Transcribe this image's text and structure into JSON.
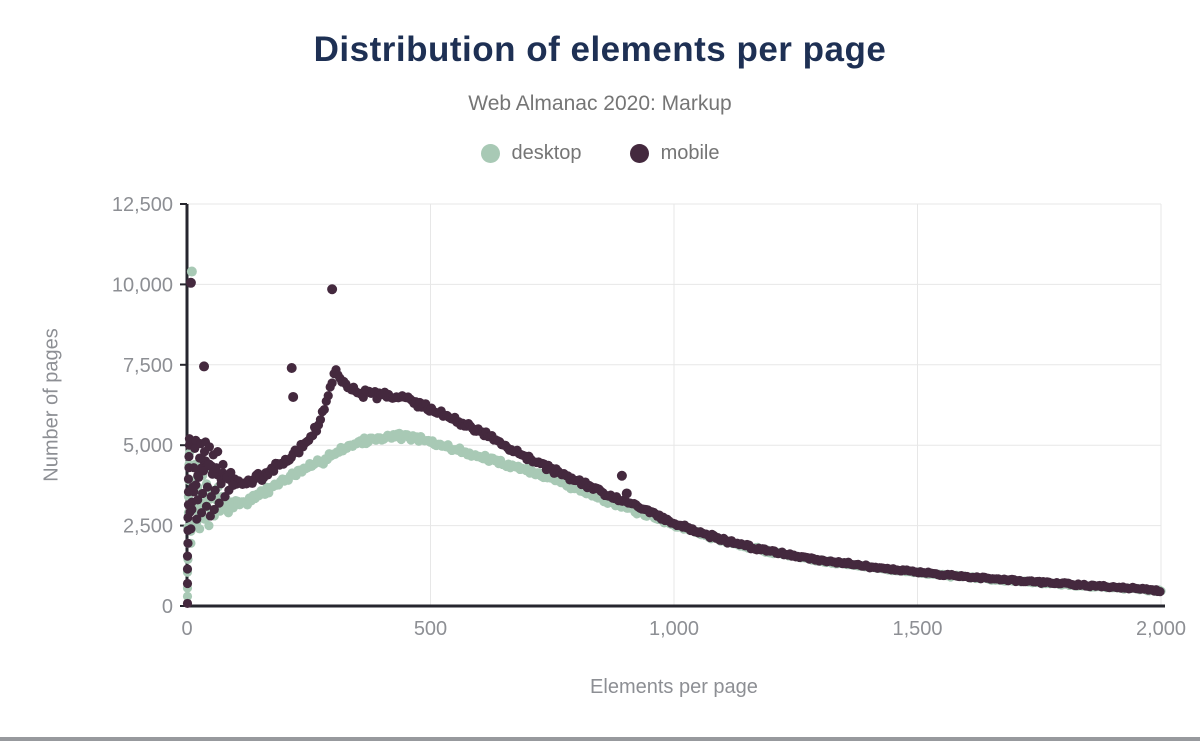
{
  "header": {
    "title": "Distribution of elements per page",
    "subtitle": "Web Almanac 2020: Markup"
  },
  "colors": {
    "title": "#1e3054",
    "subtitle_text": "#757575",
    "tick_text": "#8d8f94",
    "axis_line": "#26262e",
    "gridline": "#e7e7e7",
    "footer_bar": "#97999d",
    "desktop": "#a8c9b5",
    "mobile": "#44293e"
  },
  "chart_data": {
    "type": "scatter",
    "title": "Distribution of elements per page",
    "subtitle": "Web Almanac 2020: Markup",
    "xlabel": "Elements per page",
    "ylabel": "Number of pages",
    "xlim": [
      0,
      2000
    ],
    "ylim": [
      0,
      12500
    ],
    "grid": true,
    "legend_position": "top-center",
    "x_ticks": [
      {
        "v": 0,
        "label": "0"
      },
      {
        "v": 500,
        "label": "500"
      },
      {
        "v": 1000,
        "label": "1,000"
      },
      {
        "v": 1500,
        "label": "1,500"
      },
      {
        "v": 2000,
        "label": "2,000"
      }
    ],
    "y_ticks": [
      {
        "v": 0,
        "label": "0"
      },
      {
        "v": 2500,
        "label": "2,500"
      },
      {
        "v": 5000,
        "label": "5,000"
      },
      {
        "v": 7500,
        "label": "7,500"
      },
      {
        "v": 10000,
        "label": "10,000"
      },
      {
        "v": 12500,
        "label": "12,500"
      }
    ],
    "series": [
      {
        "name": "desktop",
        "color": "#a8c9b5",
        "trend": [
          [
            10,
            2300
          ],
          [
            25,
            2900
          ],
          [
            40,
            3300
          ],
          [
            55,
            3400
          ],
          [
            70,
            3300
          ],
          [
            90,
            3200
          ],
          [
            110,
            3200
          ],
          [
            130,
            3300
          ],
          [
            150,
            3450
          ],
          [
            170,
            3650
          ],
          [
            190,
            3850
          ],
          [
            210,
            4000
          ],
          [
            230,
            4150
          ],
          [
            250,
            4300
          ],
          [
            270,
            4450
          ],
          [
            290,
            4650
          ],
          [
            310,
            4820
          ],
          [
            330,
            4950
          ],
          [
            350,
            5080
          ],
          [
            375,
            5160
          ],
          [
            400,
            5230
          ],
          [
            425,
            5300
          ],
          [
            450,
            5280
          ],
          [
            475,
            5200
          ],
          [
            500,
            5080
          ],
          [
            525,
            4980
          ],
          [
            550,
            4880
          ],
          [
            575,
            4760
          ],
          [
            600,
            4650
          ],
          [
            625,
            4540
          ],
          [
            650,
            4430
          ],
          [
            675,
            4330
          ],
          [
            700,
            4230
          ],
          [
            725,
            4090
          ],
          [
            750,
            3950
          ],
          [
            775,
            3800
          ],
          [
            800,
            3650
          ],
          [
            825,
            3500
          ],
          [
            850,
            3350
          ],
          [
            875,
            3200
          ],
          [
            900,
            3060
          ],
          [
            925,
            2930
          ],
          [
            950,
            2800
          ],
          [
            975,
            2660
          ],
          [
            1000,
            2530
          ],
          [
            1050,
            2270
          ],
          [
            1100,
            2030
          ],
          [
            1150,
            1840
          ],
          [
            1200,
            1680
          ],
          [
            1250,
            1540
          ],
          [
            1300,
            1420
          ],
          [
            1350,
            1310
          ],
          [
            1400,
            1210
          ],
          [
            1450,
            1120
          ],
          [
            1500,
            1040
          ],
          [
            1550,
            965
          ],
          [
            1600,
            895
          ],
          [
            1650,
            835
          ],
          [
            1700,
            775
          ],
          [
            1750,
            725
          ],
          [
            1800,
            675
          ],
          [
            1850,
            625
          ],
          [
            1900,
            575
          ],
          [
            1950,
            530
          ],
          [
            2000,
            465
          ]
        ],
        "scatter": [
          [
            1,
            300
          ],
          [
            1,
            560
          ],
          [
            1,
            1050
          ],
          [
            2,
            1450
          ],
          [
            2,
            1950
          ],
          [
            2,
            2450
          ],
          [
            3,
            2900
          ],
          [
            3,
            3400
          ],
          [
            4,
            3900
          ],
          [
            4,
            4400
          ],
          [
            5,
            4750
          ],
          [
            8,
            1950
          ],
          [
            10,
            2500
          ],
          [
            12,
            3200
          ],
          [
            14,
            3900
          ],
          [
            16,
            4400
          ],
          [
            18,
            2600
          ],
          [
            20,
            3100
          ],
          [
            22,
            3700
          ],
          [
            24,
            4200
          ],
          [
            26,
            2400
          ],
          [
            28,
            2950
          ],
          [
            30,
            3500
          ],
          [
            32,
            4050
          ],
          [
            34,
            4450
          ],
          [
            36,
            2700
          ],
          [
            38,
            3250
          ],
          [
            40,
            3800
          ],
          [
            42,
            4300
          ],
          [
            45,
            2500
          ],
          [
            48,
            3000
          ],
          [
            50,
            3600
          ],
          [
            53,
            4100
          ],
          [
            56,
            2800
          ],
          [
            60,
            3300
          ],
          [
            64,
            3700
          ],
          [
            68,
            2950
          ],
          [
            72,
            3400
          ],
          [
            78,
            3100
          ],
          [
            85,
            2900
          ],
          [
            95,
            3050
          ]
        ],
        "outliers": [
          [
            10,
            10400
          ]
        ]
      },
      {
        "name": "mobile",
        "color": "#44293e",
        "trend": [
          [
            6,
            2900
          ],
          [
            15,
            3600
          ],
          [
            25,
            4200
          ],
          [
            35,
            4500
          ],
          [
            45,
            4400
          ],
          [
            55,
            4300
          ],
          [
            65,
            4100
          ],
          [
            80,
            3950
          ],
          [
            95,
            3850
          ],
          [
            110,
            3800
          ],
          [
            125,
            3850
          ],
          [
            140,
            3950
          ],
          [
            155,
            4050
          ],
          [
            170,
            4200
          ],
          [
            185,
            4350
          ],
          [
            200,
            4500
          ],
          [
            215,
            4650
          ],
          [
            230,
            4850
          ],
          [
            245,
            5100
          ],
          [
            258,
            5350
          ],
          [
            270,
            5650
          ],
          [
            280,
            6000
          ],
          [
            290,
            6550
          ],
          [
            298,
            7000
          ],
          [
            305,
            7250
          ],
          [
            312,
            7150
          ],
          [
            320,
            6950
          ],
          [
            330,
            6800
          ],
          [
            345,
            6650
          ],
          [
            360,
            6550
          ],
          [
            375,
            6650
          ],
          [
            390,
            6550
          ],
          [
            405,
            6600
          ],
          [
            420,
            6520
          ],
          [
            435,
            6500
          ],
          [
            450,
            6450
          ],
          [
            465,
            6380
          ],
          [
            480,
            6250
          ],
          [
            500,
            6100
          ],
          [
            525,
            5950
          ],
          [
            550,
            5780
          ],
          [
            575,
            5600
          ],
          [
            600,
            5420
          ],
          [
            625,
            5220
          ],
          [
            650,
            5010
          ],
          [
            675,
            4800
          ],
          [
            700,
            4600
          ],
          [
            725,
            4420
          ],
          [
            750,
            4240
          ],
          [
            775,
            4070
          ],
          [
            800,
            3900
          ],
          [
            825,
            3730
          ],
          [
            850,
            3560
          ],
          [
            875,
            3400
          ],
          [
            900,
            3250
          ],
          [
            925,
            3100
          ],
          [
            950,
            2950
          ],
          [
            975,
            2750
          ],
          [
            1000,
            2570
          ],
          [
            1050,
            2300
          ],
          [
            1100,
            2060
          ],
          [
            1150,
            1860
          ],
          [
            1200,
            1700
          ],
          [
            1250,
            1560
          ],
          [
            1300,
            1440
          ],
          [
            1350,
            1330
          ],
          [
            1400,
            1230
          ],
          [
            1450,
            1140
          ],
          [
            1500,
            1060
          ],
          [
            1550,
            985
          ],
          [
            1600,
            915
          ],
          [
            1650,
            855
          ],
          [
            1700,
            795
          ],
          [
            1750,
            740
          ],
          [
            1800,
            690
          ],
          [
            1850,
            640
          ],
          [
            1900,
            590
          ],
          [
            1950,
            540
          ],
          [
            2000,
            475
          ]
        ],
        "scatter": [
          [
            1,
            80
          ],
          [
            1,
            700
          ],
          [
            1,
            1150
          ],
          [
            1,
            1550
          ],
          [
            2,
            1950
          ],
          [
            2,
            2350
          ],
          [
            2,
            2750
          ],
          [
            3,
            3150
          ],
          [
            3,
            3550
          ],
          [
            3,
            3950
          ],
          [
            4,
            4300
          ],
          [
            4,
            4650
          ],
          [
            5,
            5000
          ],
          [
            5,
            5200
          ],
          [
            8,
            2400
          ],
          [
            10,
            3000
          ],
          [
            12,
            3700
          ],
          [
            14,
            4300
          ],
          [
            16,
            4900
          ],
          [
            18,
            5150
          ],
          [
            20,
            2700
          ],
          [
            22,
            3300
          ],
          [
            24,
            4000
          ],
          [
            26,
            4600
          ],
          [
            28,
            5050
          ],
          [
            30,
            2900
          ],
          [
            32,
            3500
          ],
          [
            34,
            4200
          ],
          [
            36,
            4800
          ],
          [
            38,
            5100
          ],
          [
            40,
            3100
          ],
          [
            42,
            3700
          ],
          [
            44,
            4400
          ],
          [
            46,
            4950
          ],
          [
            48,
            2800
          ],
          [
            50,
            3400
          ],
          [
            52,
            4100
          ],
          [
            54,
            4700
          ],
          [
            56,
            3000
          ],
          [
            58,
            3600
          ],
          [
            60,
            4300
          ],
          [
            63,
            4800
          ],
          [
            66,
            3200
          ],
          [
            70,
            3800
          ],
          [
            74,
            4400
          ],
          [
            78,
            3400
          ],
          [
            82,
            4000
          ],
          [
            86,
            3600
          ],
          [
            90,
            4150
          ],
          [
            95,
            3750
          ]
        ],
        "outliers": [
          [
            8,
            10050
          ],
          [
            35,
            7450
          ],
          [
            215,
            7400
          ],
          [
            218,
            6500
          ],
          [
            298,
            9850
          ],
          [
            893,
            4050
          ],
          [
            903,
            3500
          ]
        ]
      }
    ]
  }
}
